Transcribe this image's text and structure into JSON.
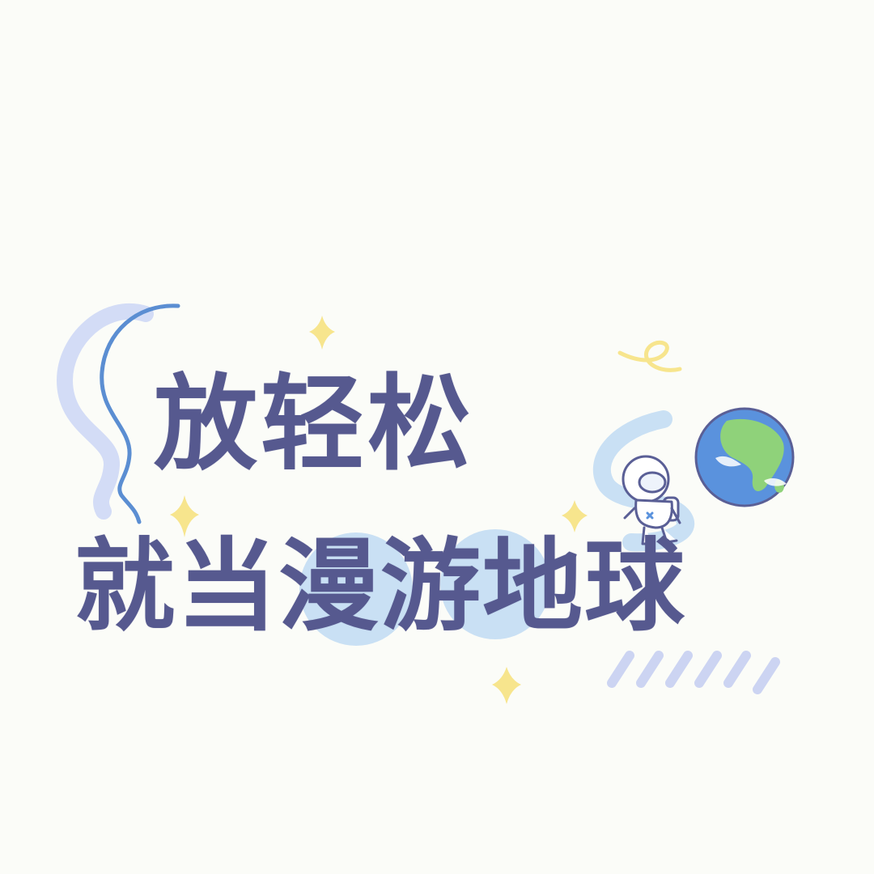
{
  "sticker": {
    "line1": "放轻松",
    "line2": "就当漫游地球"
  },
  "colors": {
    "background": "#fbfcf8",
    "text": "#56598f",
    "highlight_circle": "#c9e0f4",
    "swirl_light": "#d3dcf6",
    "swirl_dark": "#5b8ed2",
    "sparkle": "#f7e58d",
    "ocean": "#5a92dd",
    "land": "#8fd27a",
    "hatch": "#ccd4f2"
  },
  "icons": [
    "sparkle-icon",
    "earth-icon",
    "astronaut-icon",
    "curly-loop-icon",
    "swirl-decoration",
    "hatch-lines"
  ]
}
